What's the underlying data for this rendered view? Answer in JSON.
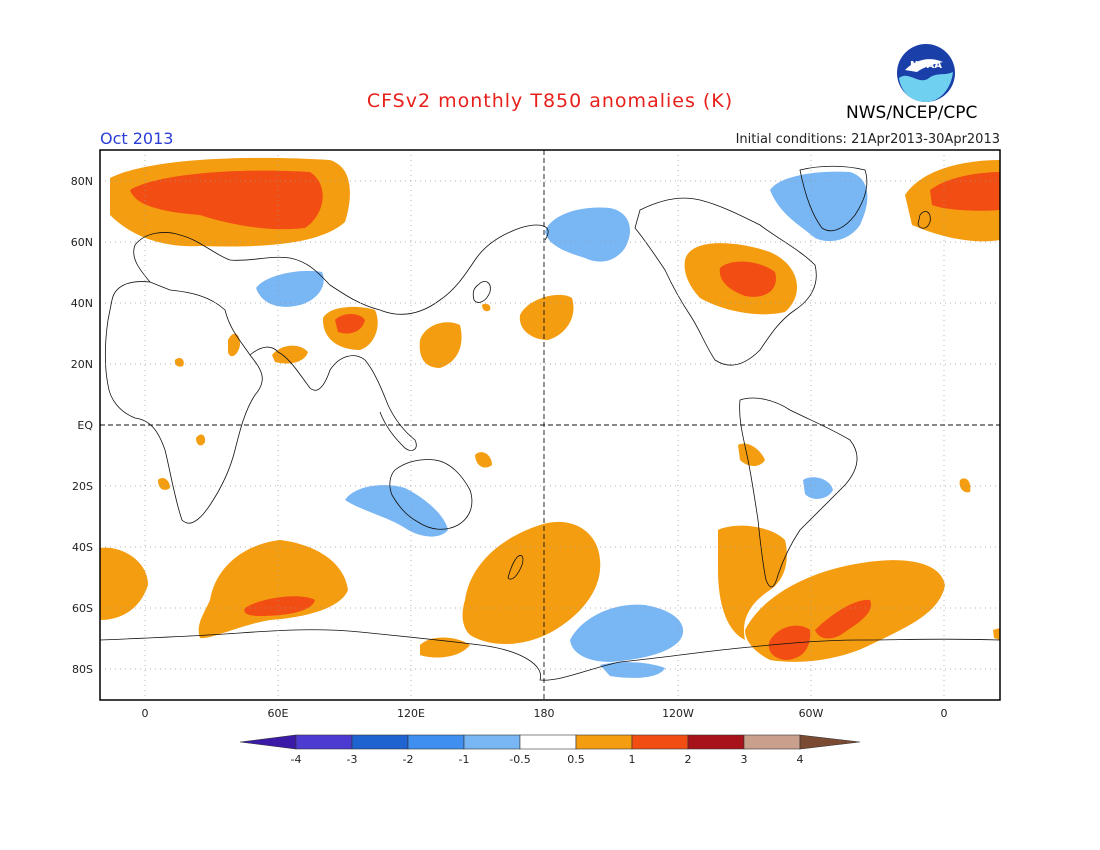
{
  "header": {
    "title": "CFSv2 monthly T850 anomalies (K)",
    "agency": "NWS/NCEP/CPC",
    "logo_text": "NOAA",
    "period": "Oct 2013",
    "initial_conditions": "Initial conditions: 21Apr2013-30Apr2013"
  },
  "map": {
    "projection": "cylindrical equidistant, centered 180",
    "lat_ticks": [
      "80N",
      "60N",
      "40N",
      "20N",
      "EQ",
      "20S",
      "40S",
      "60S",
      "80S"
    ],
    "lon_ticks": [
      "0",
      "60E",
      "120E",
      "180",
      "120W",
      "60W",
      "0"
    ],
    "gridlines": "dotted",
    "reference_lines": [
      "equator dashed",
      "180 meridian dashed"
    ]
  },
  "colorbar": {
    "labels": [
      "-4",
      "-3",
      "-2",
      "-1",
      "-0.5",
      "0.5",
      "1",
      "2",
      "3",
      "4"
    ],
    "colors": [
      "#3c1aa8",
      "#4d3bd1",
      "#1f63d1",
      "#3f8ff0",
      "#79b6f4",
      "#ffffff",
      "#f59d10",
      "#f24e13",
      "#a8121a",
      "#c9a08b",
      "#7a4a33"
    ]
  },
  "legend_colors": {
    "warm_light": "#f59d10",
    "warm_mid": "#f24e13",
    "warm_dark": "#a8121a",
    "cool_light": "#79b6f4",
    "cool_mid": "#3f8ff0"
  }
}
